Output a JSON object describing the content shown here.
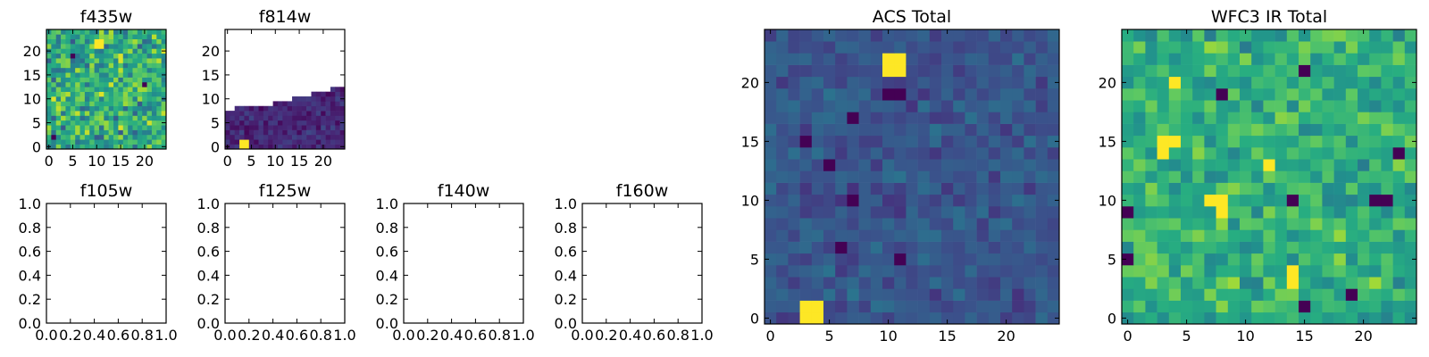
{
  "chart_data": [
    {
      "type": "heatmap",
      "title": "f435w",
      "grid": 25,
      "coverage": "full",
      "colormap": "viridis",
      "seed": 11,
      "xlim": [
        -0.5,
        24.5
      ],
      "ylim": [
        -0.5,
        24.5
      ],
      "xticks": [
        0,
        5,
        10,
        15,
        20
      ],
      "yticks": [
        0,
        5,
        10,
        15,
        20
      ],
      "xtick_labels": [
        "0",
        "5",
        "10",
        "15",
        "20"
      ],
      "ytick_labels": [
        "0",
        "5",
        "10",
        "15",
        "20"
      ],
      "value_mean": 0.62,
      "value_spread": 0.22,
      "hot_spots": [
        [
          10,
          21
        ],
        [
          11,
          21
        ],
        [
          10,
          22
        ],
        [
          11,
          22
        ]
      ],
      "cold_spots": [
        [
          1,
          2
        ],
        [
          20,
          13
        ],
        [
          5,
          19
        ]
      ]
    },
    {
      "type": "heatmap",
      "title": "f814w",
      "grid": 25,
      "coverage": "lower",
      "colormap": "viridis",
      "seed": 23,
      "xlim": [
        -0.5,
        24.5
      ],
      "ylim": [
        -0.5,
        24.5
      ],
      "xticks": [
        0,
        5,
        10,
        15,
        20
      ],
      "yticks": [
        0,
        5,
        10,
        15,
        20
      ],
      "xtick_labels": [
        "0",
        "5",
        "10",
        "15",
        "20"
      ],
      "ytick_labels": [
        "0",
        "5",
        "10",
        "15",
        "20"
      ],
      "value_mean": 0.12,
      "value_spread": 0.07,
      "coverage_edge_y": [
        [
          0,
          7
        ],
        [
          3,
          8
        ],
        [
          8,
          8
        ],
        [
          12,
          9
        ],
        [
          16,
          10
        ],
        [
          20,
          11
        ],
        [
          24,
          12
        ]
      ],
      "hot_spots": [
        [
          3,
          0
        ],
        [
          4,
          0
        ],
        [
          3,
          1
        ],
        [
          4,
          1
        ]
      ],
      "cold_spots": []
    },
    {
      "type": "empty",
      "title": "f105w",
      "xlim": [
        0,
        1
      ],
      "ylim": [
        0,
        1
      ],
      "xticks": [
        0,
        0.2,
        0.4,
        0.6,
        0.8,
        1.0
      ],
      "yticks": [
        0,
        0.2,
        0.4,
        0.6,
        0.8,
        1.0
      ],
      "xtick_labels": [
        "0.0",
        "0.2",
        "0.4",
        "0.6",
        "0.8",
        "1.0"
      ],
      "ytick_labels": [
        "0.0",
        "0.2",
        "0.4",
        "0.6",
        "0.8",
        "1.0"
      ]
    },
    {
      "type": "empty",
      "title": "f125w",
      "xlim": [
        0,
        1
      ],
      "ylim": [
        0,
        1
      ],
      "xticks": [
        0,
        0.2,
        0.4,
        0.6,
        0.8,
        1.0
      ],
      "yticks": [
        0,
        0.2,
        0.4,
        0.6,
        0.8,
        1.0
      ],
      "xtick_labels": [
        "0.0",
        "0.2",
        "0.4",
        "0.6",
        "0.8",
        "1.0"
      ],
      "ytick_labels": [
        "0.0",
        "0.2",
        "0.4",
        "0.6",
        "0.8",
        "1.0"
      ]
    },
    {
      "type": "empty",
      "title": "f140w",
      "xlim": [
        0,
        1
      ],
      "ylim": [
        0,
        1
      ],
      "xticks": [
        0,
        0.2,
        0.4,
        0.6,
        0.8,
        1.0
      ],
      "yticks": [
        0,
        0.2,
        0.4,
        0.6,
        0.8,
        1.0
      ],
      "xtick_labels": [
        "0.0",
        "0.2",
        "0.4",
        "0.6",
        "0.8",
        "1.0"
      ],
      "ytick_labels": [
        "0.0",
        "0.2",
        "0.4",
        "0.6",
        "0.8",
        "1.0"
      ]
    },
    {
      "type": "empty",
      "title": "f160w",
      "xlim": [
        0,
        1
      ],
      "ylim": [
        0,
        1
      ],
      "xticks": [
        0,
        0.2,
        0.4,
        0.6,
        0.8,
        1.0
      ],
      "yticks": [
        0,
        0.2,
        0.4,
        0.6,
        0.8,
        1.0
      ],
      "xtick_labels": [
        "0.0",
        "0.2",
        "0.4",
        "0.6",
        "0.8",
        "1.0"
      ],
      "ytick_labels": [
        "0.0",
        "0.2",
        "0.4",
        "0.6",
        "0.8",
        "1.0"
      ]
    },
    {
      "type": "heatmap",
      "title": "ACS Total",
      "grid": 25,
      "coverage": "full",
      "colormap": "viridis",
      "seed": 37,
      "xlim": [
        -0.5,
        24.5
      ],
      "ylim": [
        -0.5,
        24.5
      ],
      "xticks": [
        0,
        5,
        10,
        15,
        20
      ],
      "yticks": [
        0,
        5,
        10,
        15,
        20
      ],
      "xtick_labels": [
        "0",
        "5",
        "10",
        "15",
        "20"
      ],
      "ytick_labels": [
        "0",
        "5",
        "10",
        "15",
        "20"
      ],
      "value_mean": 0.27,
      "value_spread": 0.08,
      "hot_spots": [
        [
          3,
          0
        ],
        [
          4,
          0
        ],
        [
          3,
          1
        ],
        [
          4,
          1
        ],
        [
          10,
          21
        ],
        [
          11,
          21
        ],
        [
          10,
          22
        ],
        [
          11,
          22
        ]
      ],
      "cold_spots": [
        [
          7,
          17
        ],
        [
          10,
          19
        ],
        [
          11,
          19
        ],
        [
          3,
          15
        ],
        [
          7,
          10
        ],
        [
          11,
          5
        ],
        [
          6,
          6
        ],
        [
          5,
          13
        ]
      ]
    },
    {
      "type": "heatmap",
      "title": "WFC3 IR Total",
      "grid": 25,
      "coverage": "full",
      "colormap": "viridis",
      "seed": 53,
      "xlim": [
        -0.5,
        24.5
      ],
      "ylim": [
        -0.5,
        24.5
      ],
      "xticks": [
        0,
        5,
        10,
        15,
        20
      ],
      "yticks": [
        0,
        5,
        10,
        15,
        20
      ],
      "xtick_labels": [
        "0",
        "5",
        "10",
        "15",
        "20"
      ],
      "ytick_labels": [
        "0",
        "5",
        "10",
        "15",
        "20"
      ],
      "value_mean": 0.64,
      "value_spread": 0.15,
      "hot_spots": [
        [
          3,
          14
        ],
        [
          3,
          15
        ],
        [
          4,
          15
        ],
        [
          7,
          10
        ],
        [
          8,
          10
        ],
        [
          8,
          9
        ],
        [
          14,
          4
        ],
        [
          14,
          3
        ],
        [
          4,
          20
        ],
        [
          12,
          13
        ]
      ],
      "cold_spots": [
        [
          0,
          5
        ],
        [
          0,
          9
        ],
        [
          22,
          10
        ],
        [
          21,
          10
        ],
        [
          15,
          1
        ],
        [
          23,
          14
        ],
        [
          19,
          2
        ],
        [
          14,
          10
        ],
        [
          15,
          21
        ],
        [
          8,
          19
        ]
      ]
    }
  ]
}
